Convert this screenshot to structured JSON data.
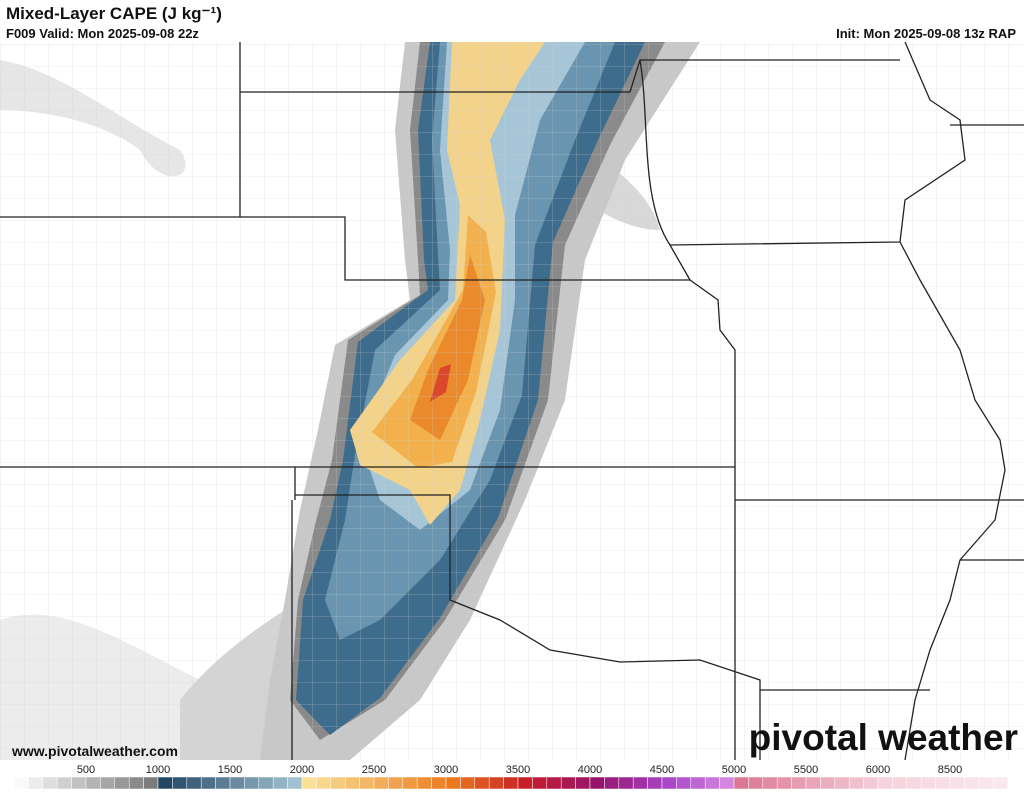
{
  "header": {
    "title": "Mixed-Layer CAPE (J kg⁻¹)",
    "valid": "F009 Valid: Mon 2025-09-08 22z",
    "init": "Init: Mon 2025-09-08 13z RAP"
  },
  "footer": {
    "website": "www.pivotalweather.com",
    "logo": "pivotal weather"
  },
  "colorbar": {
    "labels": [
      500,
      1000,
      1500,
      2000,
      2500,
      3000,
      3500,
      4000,
      4500,
      5000,
      5500,
      6000,
      8500
    ]
  }
}
